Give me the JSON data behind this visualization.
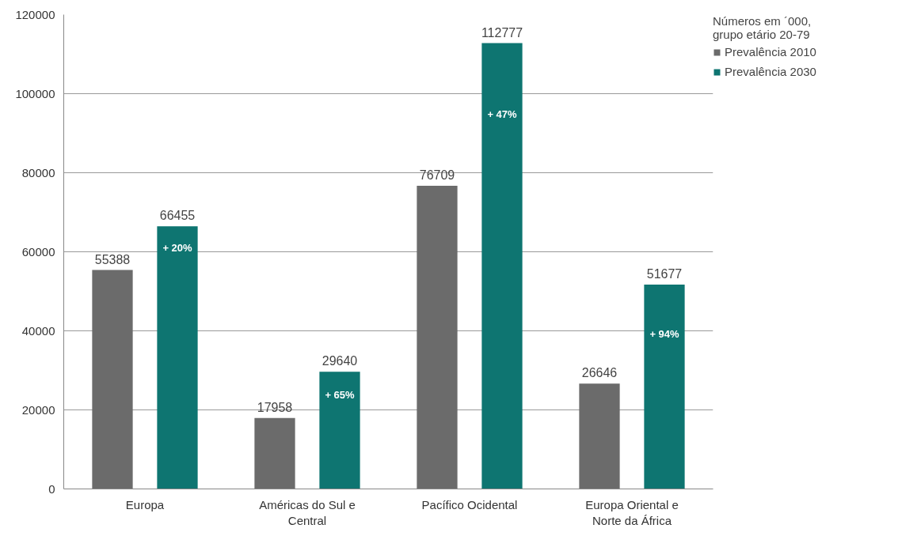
{
  "chart_data": {
    "type": "bar",
    "categories": [
      "Europa",
      "Américas do Sul e Central",
      "Pacífico Ocidental",
      "Europa Oriental e Norte da África"
    ],
    "series": [
      {
        "name": "Prevalência 2010",
        "color": "#6b6b6b",
        "values": [
          55388,
          17958,
          76709,
          26646
        ]
      },
      {
        "name": "Prevalência 2030",
        "color": "#0e7571",
        "values": [
          66455,
          29640,
          112777,
          51677
        ]
      }
    ],
    "legend_title": "Números em ´000, grupo etário 20-79",
    "annotations": [
      "+ 20%",
      "+ 65%",
      "+ 47%",
      "+ 94%"
    ],
    "ylim": [
      0,
      120000
    ],
    "yticks": [
      0,
      20000,
      40000,
      60000,
      80000,
      100000,
      120000
    ],
    "grid": "y",
    "legend": "top right",
    "data_labels": true
  }
}
